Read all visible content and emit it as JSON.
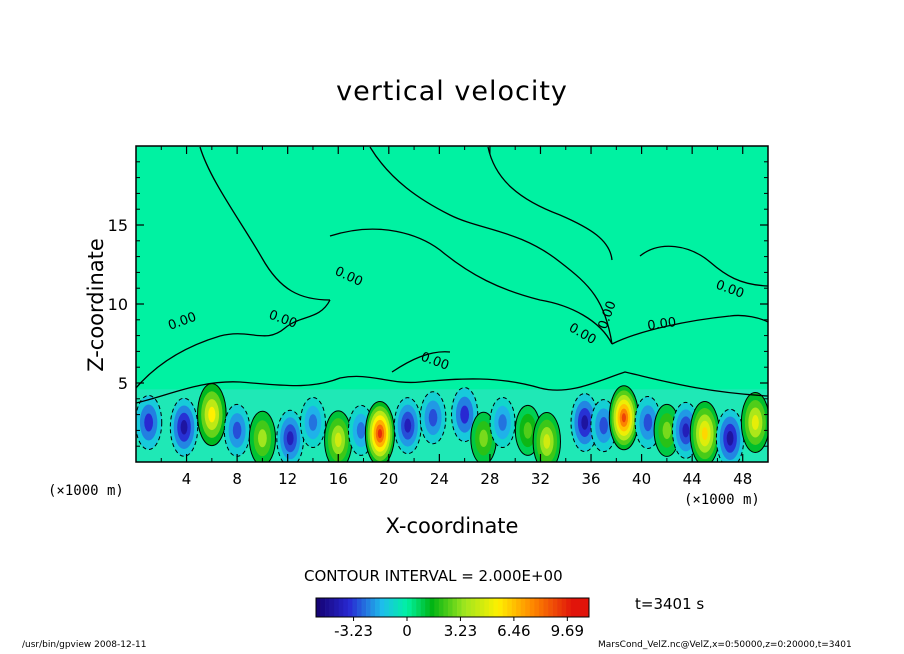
{
  "chart_data": {
    "type": "heatmap",
    "title": "vertical velocity",
    "xlabel": "X-coordinate",
    "ylabel": "Z-coordinate",
    "x_unit": "(×1000 m)",
    "xlim": [
      0,
      50
    ],
    "ylim": [
      0,
      20
    ],
    "x_ticks": [
      4,
      8,
      12,
      16,
      20,
      24,
      28,
      32,
      36,
      40,
      44,
      48
    ],
    "y_ticks": [
      5,
      10,
      15
    ],
    "contour_interval": "CONTOUR INTERVAL = 2.000E+00",
    "contour_labels": [
      "0.00",
      "0.00",
      "0.00",
      "0.00",
      "0.00",
      "0.00",
      "0.00",
      "0.00"
    ],
    "colorbar_ticks": [
      "-3.23",
      "0",
      "3.23",
      "6.46",
      "9.69"
    ],
    "colorbar_range": [
      -5.5,
      11
    ],
    "cells": [
      {
        "x": 1,
        "z": 2.5,
        "w": -3.5
      },
      {
        "x": 3.8,
        "z": 2.2,
        "w": -4.5
      },
      {
        "x": 6,
        "z": 3.0,
        "w": 5.5
      },
      {
        "x": 8,
        "z": 2.0,
        "w": -3.0
      },
      {
        "x": 10,
        "z": 1.5,
        "w": 3.5
      },
      {
        "x": 12.2,
        "z": 1.5,
        "w": -4.0
      },
      {
        "x": 14,
        "z": 2.5,
        "w": -2.5
      },
      {
        "x": 16,
        "z": 1.4,
        "w": 4.5
      },
      {
        "x": 17.8,
        "z": 2.0,
        "w": -2.5
      },
      {
        "x": 19.3,
        "z": 1.8,
        "w": 9.5
      },
      {
        "x": 21.5,
        "z": 2.3,
        "w": -4.0
      },
      {
        "x": 23.5,
        "z": 2.8,
        "w": -3.0
      },
      {
        "x": 26,
        "z": 3.0,
        "w": -3.5
      },
      {
        "x": 27.5,
        "z": 1.5,
        "w": 3.0
      },
      {
        "x": 29,
        "z": 2.5,
        "w": -2.5
      },
      {
        "x": 31,
        "z": 2.0,
        "w": 2.5
      },
      {
        "x": 32.5,
        "z": 1.3,
        "w": 4.5
      },
      {
        "x": 35.5,
        "z": 2.5,
        "w": -4.5
      },
      {
        "x": 37,
        "z": 2.3,
        "w": -3.0
      },
      {
        "x": 38.6,
        "z": 2.8,
        "w": 9.0
      },
      {
        "x": 40.5,
        "z": 2.5,
        "w": -3.0
      },
      {
        "x": 42,
        "z": 2.0,
        "w": 3.0
      },
      {
        "x": 43.5,
        "z": 2.0,
        "w": -4.0
      },
      {
        "x": 45,
        "z": 1.8,
        "w": 6.0
      },
      {
        "x": 47,
        "z": 1.5,
        "w": -4.5
      },
      {
        "x": 49,
        "z": 2.5,
        "w": 5.0
      }
    ]
  },
  "footer": {
    "left": "/usr/bin/gpview   2008-12-11",
    "right": "MarsCond_VelZ.nc@VelZ,x=0:50000,z=0:20000,t=3401"
  },
  "time_label": "t=3401 s",
  "colors": {
    "background_field": "#00f2a2",
    "axis": "#000000"
  }
}
